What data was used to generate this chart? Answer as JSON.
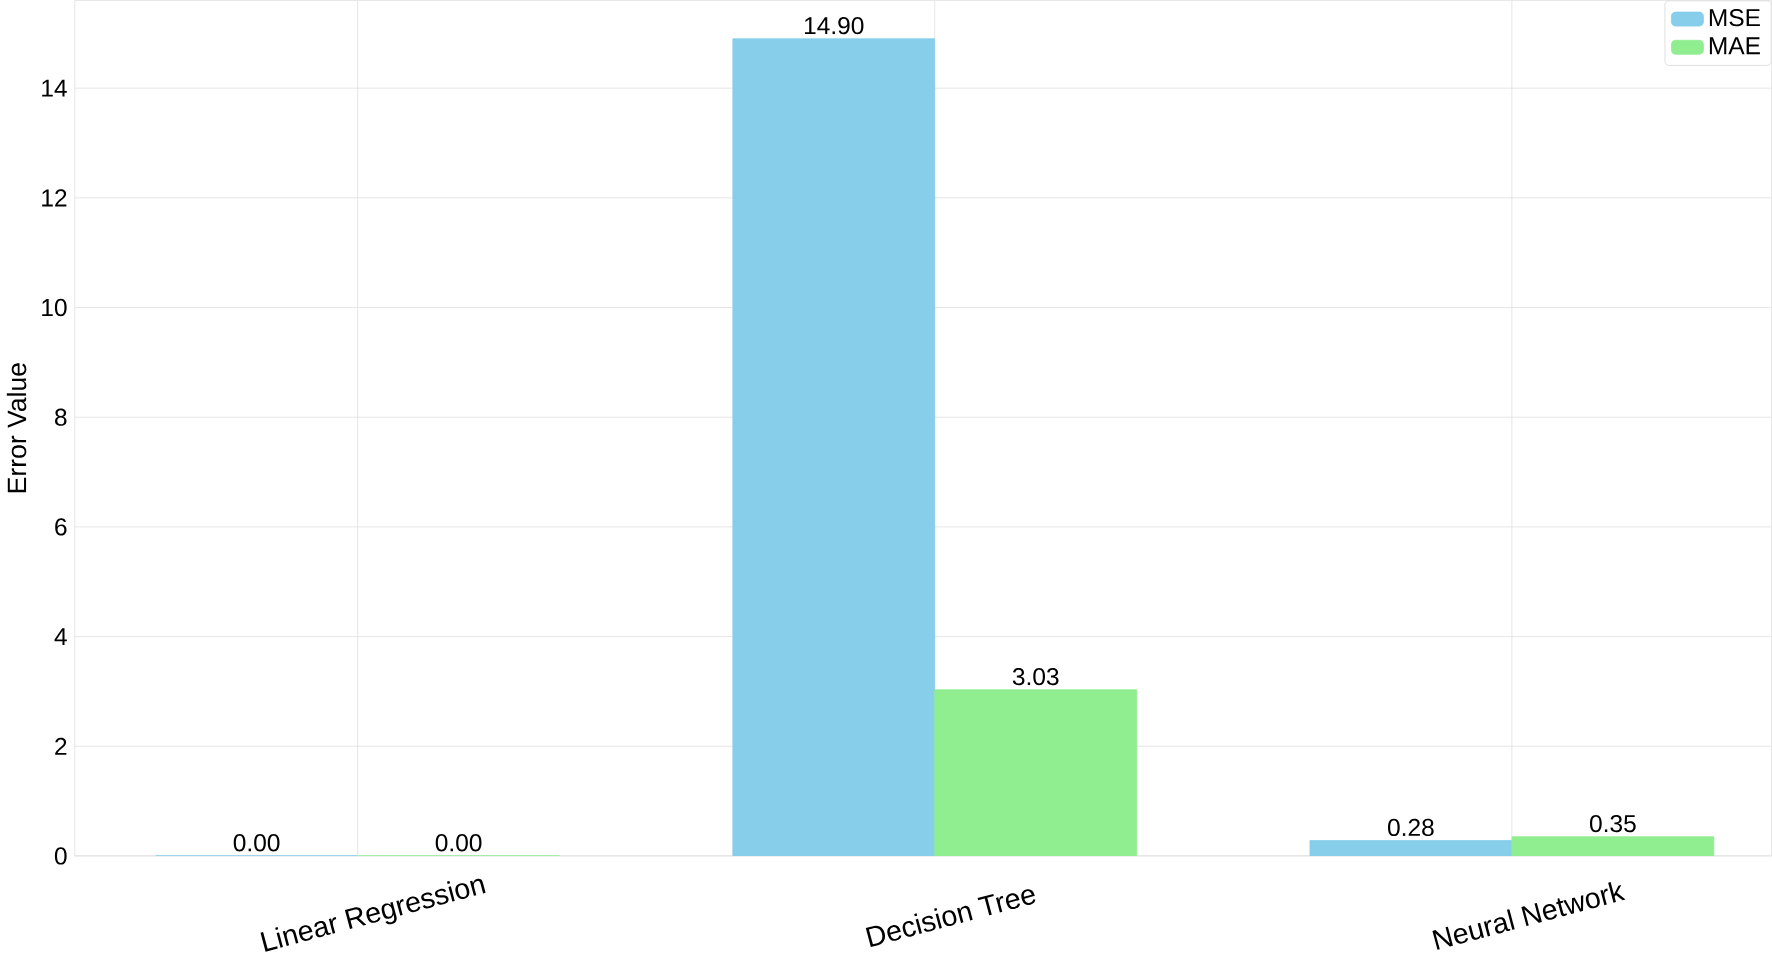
{
  "chart_data": {
    "type": "bar",
    "ylabel": "Error Value",
    "categories": [
      "Linear Regression",
      "Decision Tree",
      "Neural Network"
    ],
    "series": [
      {
        "name": "MSE",
        "color": "#87ceeb",
        "values": [
          0.0,
          14.9,
          0.28
        ],
        "value_labels": [
          "0.00",
          "14.90",
          "0.28"
        ]
      },
      {
        "name": "MAE",
        "color": "#90ee90",
        "values": [
          0.0,
          3.03,
          0.35
        ],
        "value_labels": [
          "0.00",
          "3.03",
          "0.35"
        ]
      }
    ],
    "ylim": [
      0,
      15.6
    ],
    "yticks": [
      0,
      2,
      4,
      6,
      8,
      10,
      12,
      14
    ],
    "grid": true,
    "legend": "top right"
  }
}
